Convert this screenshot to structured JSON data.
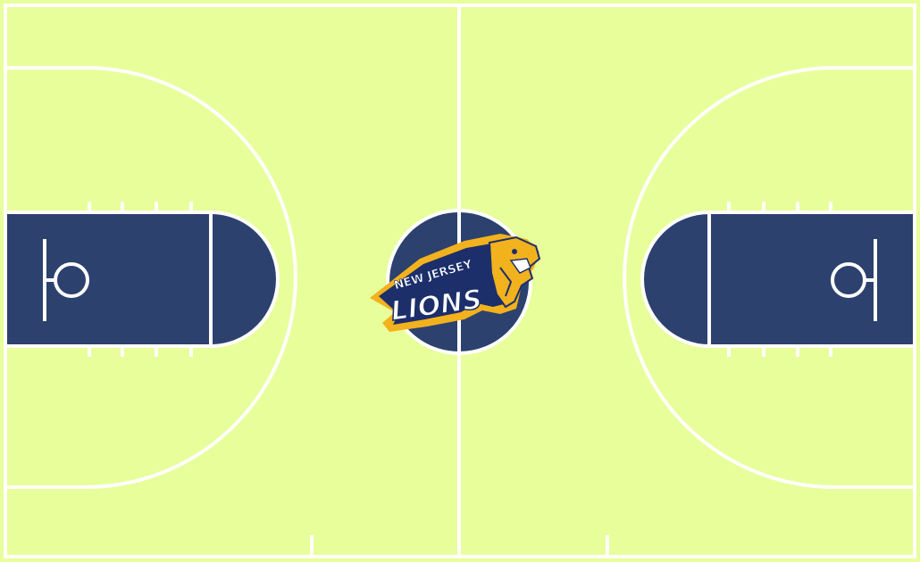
{
  "colors": {
    "floor": "#e8fe9a",
    "paint": "#2c416e",
    "lines": "#ffffff",
    "logo_gold": "#f2b21d",
    "logo_navy": "#1c2f6b"
  },
  "logo": {
    "top_text": "NEW JERSEY",
    "main_text": "LIONS",
    "icon": "lion-head-icon"
  }
}
